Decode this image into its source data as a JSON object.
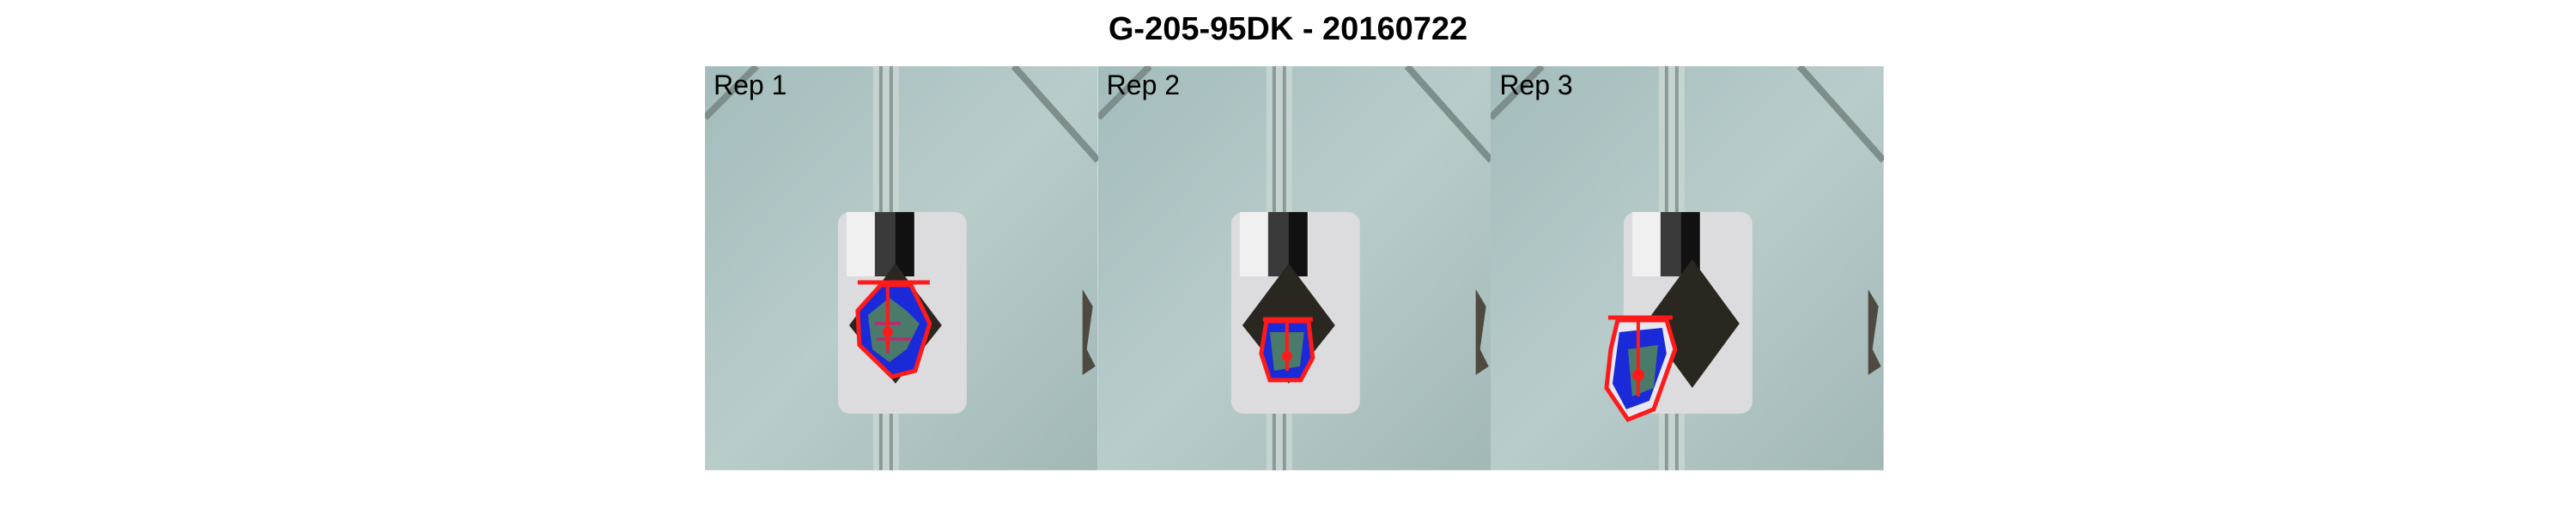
{
  "header": {
    "title": "G-205-95DK - 20160722"
  },
  "panels": [
    {
      "label": "Rep 1"
    },
    {
      "label": "Rep 2"
    },
    {
      "label": "Rep 3"
    }
  ],
  "colors": {
    "background": "#a9c1c0",
    "outline": "#ff1a1a",
    "mask": "#1a2ad8",
    "foliage": "#4a7a6a",
    "soil": "#2a2620"
  }
}
